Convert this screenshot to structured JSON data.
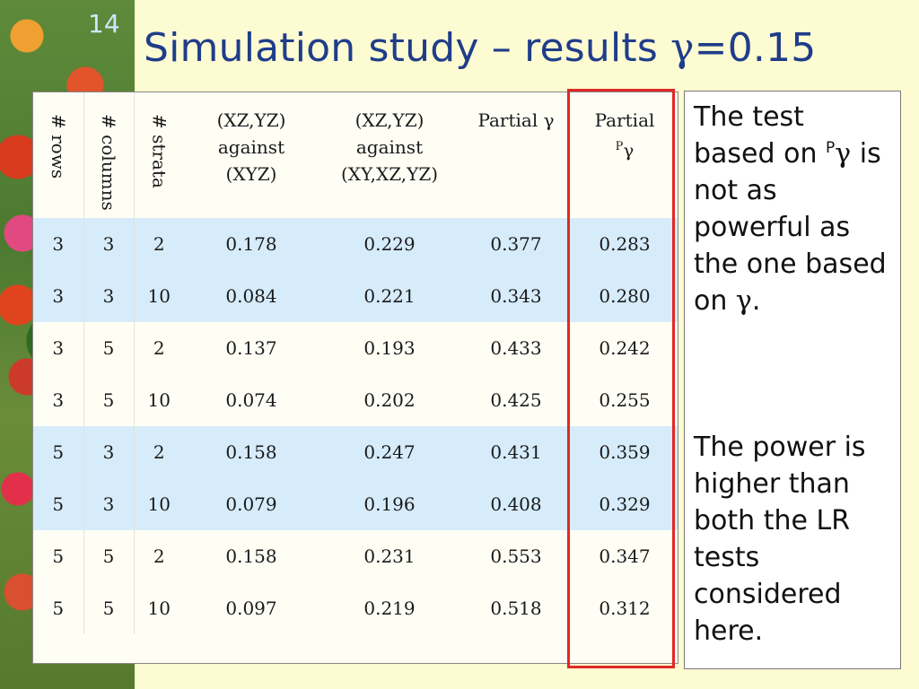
{
  "slide_number": "14",
  "title": {
    "prefix": "Simulation study – results ",
    "gamma": "γ",
    "suffix": "=0.15"
  },
  "table": {
    "headers": {
      "rows": "# rows",
      "columns": "# columns",
      "strata": "# strata",
      "xzyz_xyz": [
        "(XZ,YZ)",
        "against",
        "(XYZ)"
      ],
      "xzyz_xyxzyz": [
        "(XZ,YZ)",
        "against",
        "(XY,XZ,YZ)"
      ],
      "partial_gamma": "Partial γ",
      "partial_pgamma_main": "Partial",
      "partial_pgamma_sup": "P",
      "partial_pgamma_gamma": "γ"
    },
    "rows": [
      {
        "r": "3",
        "c": "3",
        "s": "2",
        "a": "0.178",
        "b": "0.229",
        "pg": "0.377",
        "ppg": "0.283",
        "highlight": true
      },
      {
        "r": "3",
        "c": "3",
        "s": "10",
        "a": "0.084",
        "b": "0.221",
        "pg": "0.343",
        "ppg": "0.280",
        "highlight": true
      },
      {
        "r": "3",
        "c": "5",
        "s": "2",
        "a": "0.137",
        "b": "0.193",
        "pg": "0.433",
        "ppg": "0.242",
        "highlight": false
      },
      {
        "r": "3",
        "c": "5",
        "s": "10",
        "a": "0.074",
        "b": "0.202",
        "pg": "0.425",
        "ppg": "0.255",
        "highlight": false
      },
      {
        "r": "5",
        "c": "3",
        "s": "2",
        "a": "0.158",
        "b": "0.247",
        "pg": "0.431",
        "ppg": "0.359",
        "highlight": true
      },
      {
        "r": "5",
        "c": "3",
        "s": "10",
        "a": "0.079",
        "b": "0.196",
        "pg": "0.408",
        "ppg": "0.329",
        "highlight": true
      },
      {
        "r": "5",
        "c": "5",
        "s": "2",
        "a": "0.158",
        "b": "0.231",
        "pg": "0.553",
        "ppg": "0.347",
        "highlight": false
      },
      {
        "r": "5",
        "c": "5",
        "s": "10",
        "a": "0.097",
        "b": "0.219",
        "pg": "0.518",
        "ppg": "0.312",
        "highlight": false
      }
    ]
  },
  "notes": {
    "note1_a": "The test based on ",
    "note1_sup": "P",
    "note1_gamma": "γ",
    "note1_b": " is not as powerful as the one based on ",
    "note1_gamma2": "γ",
    "note1_end": ".",
    "note2": "The power is higher than both the LR tests considered here."
  },
  "colors": {
    "background": "#fdfbd1",
    "title": "#1f3d8a",
    "row_highlight": "#d6ecfb",
    "emphasis_box": "#e02828"
  }
}
